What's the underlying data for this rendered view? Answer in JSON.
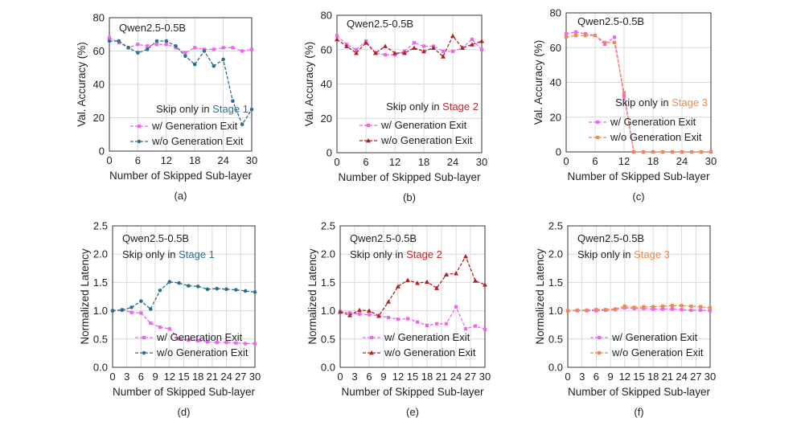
{
  "chart_data": [
    {
      "type": "line",
      "caption": "(a)",
      "title": "Qwen2.5-0.5B",
      "note_prefix": "Skip only in ",
      "note_stage": "Stage 1",
      "note_stage_color": "#2e6f8e",
      "xlabel": "Number of Skipped Sub-layer",
      "ylabel": "Val. Accuracy (%)",
      "xlim": [
        0,
        30
      ],
      "ylim": [
        0,
        80
      ],
      "xticks": [
        "0",
        "6",
        "12",
        "18",
        "24",
        "30"
      ],
      "yticks": [
        "0",
        "20",
        "40",
        "60",
        "80"
      ],
      "series": [
        {
          "name": "w/ Generation Exit",
          "color": "#ee66ee",
          "marker": "square",
          "dash": "4,2",
          "x": [
            0,
            2,
            4,
            6,
            8,
            10,
            12,
            14,
            16,
            18,
            20,
            22,
            24,
            26,
            28,
            30
          ],
          "y": [
            68,
            65,
            62,
            64,
            63,
            64,
            64,
            62,
            59,
            62,
            61,
            61,
            62,
            62,
            60,
            61
          ]
        },
        {
          "name": "w/o Generation Exit",
          "color": "#2e6f8e",
          "marker": "circle",
          "dash": "4,2",
          "x": [
            0,
            2,
            4,
            6,
            8,
            10,
            12,
            14,
            16,
            18,
            20,
            22,
            24,
            26,
            28,
            30
          ],
          "y": [
            66,
            66,
            62,
            59,
            61,
            66,
            66,
            63,
            57,
            52,
            60,
            51,
            55,
            30,
            16,
            25
          ]
        }
      ]
    },
    {
      "type": "line",
      "caption": "(b)",
      "title": "Qwen2.5-0.5B",
      "note_prefix": "Skip only in ",
      "note_stage": "Stage 2",
      "note_stage_color": "#c0282d",
      "xlabel": "Number of Skipped Sub-layer",
      "ylabel": "Val. Accuracy (%)",
      "xlim": [
        0,
        30
      ],
      "ylim": [
        0,
        80
      ],
      "xticks": [
        "0",
        "6",
        "12",
        "18",
        "24",
        "30"
      ],
      "yticks": [
        "0",
        "20",
        "40",
        "60",
        "80"
      ],
      "series": [
        {
          "name": "w/ Generation Exit",
          "color": "#ee66ee",
          "marker": "square",
          "dash": "4,2",
          "x": [
            0,
            2,
            4,
            6,
            8,
            10,
            12,
            14,
            16,
            18,
            20,
            22,
            24,
            26,
            28,
            30
          ],
          "y": [
            68,
            63,
            60,
            65,
            58,
            57,
            57,
            59,
            64,
            62,
            62,
            59,
            59,
            61,
            66,
            60
          ]
        },
        {
          "name": "w/o Generation Exit",
          "color": "#b22222",
          "marker": "triangle",
          "dash": "4,2",
          "x": [
            0,
            2,
            4,
            6,
            8,
            10,
            12,
            14,
            16,
            18,
            20,
            22,
            24,
            26,
            28,
            30
          ],
          "y": [
            66,
            62,
            58,
            64,
            58,
            62,
            58,
            58,
            61,
            59,
            61,
            56,
            68,
            61,
            63,
            65
          ]
        }
      ]
    },
    {
      "type": "line",
      "caption": "(c)",
      "title": "Qwen2.5-0.5B",
      "note_prefix": "Skip only in ",
      "note_stage": "Stage 3",
      "note_stage_color": "#f0894f",
      "xlabel": "Number of Skipped Sub-layer",
      "ylabel": "Val. Accuracy (%)",
      "xlim": [
        0,
        30
      ],
      "ylim": [
        0,
        80
      ],
      "xticks": [
        "0",
        "6",
        "12",
        "18",
        "24",
        "30"
      ],
      "yticks": [
        "0",
        "20",
        "40",
        "60",
        "80"
      ],
      "series": [
        {
          "name": "w/ Generation Exit",
          "color": "#ee66ee",
          "marker": "square",
          "dash": "4,2",
          "x": [
            0,
            2,
            4,
            6,
            8,
            10,
            12,
            14,
            16,
            18,
            20,
            22,
            24,
            26,
            28,
            30
          ],
          "y": [
            68,
            69,
            68,
            67,
            62,
            66,
            32,
            0,
            0,
            0,
            0,
            0,
            0,
            0,
            0,
            0
          ]
        },
        {
          "name": "w/o Generation Exit",
          "color": "#f0894f",
          "marker": "square",
          "dash": "4,2",
          "x": [
            0,
            2,
            4,
            6,
            8,
            10,
            12,
            14,
            16,
            18,
            20,
            22,
            24,
            26,
            28,
            30
          ],
          "y": [
            66,
            67,
            67,
            67,
            63,
            63,
            34,
            0,
            0,
            0,
            0,
            0,
            0,
            0,
            0,
            0
          ]
        }
      ]
    },
    {
      "type": "line",
      "caption": "(d)",
      "title": "Qwen2.5-0.5B",
      "note_prefix": "Skip only in ",
      "note_stage": "Stage 1",
      "note_stage_color": "#2e6f8e",
      "xlabel": "Number of Skipped Sub-layer",
      "ylabel": "Normalized Latency",
      "xlim": [
        0,
        30
      ],
      "ylim": [
        0,
        2.5
      ],
      "xticks": [
        "0",
        "3",
        "6",
        "9",
        "12",
        "15",
        "18",
        "21",
        "24",
        "27",
        "30"
      ],
      "yticks": [
        "0.0",
        "0.5",
        "1.0",
        "1.5",
        "2.0",
        "2.5"
      ],
      "series": [
        {
          "name": "w/ Generation Exit",
          "color": "#ee66ee",
          "marker": "square",
          "dash": "4,2",
          "x": [
            0,
            2,
            4,
            6,
            8,
            10,
            12,
            14,
            16,
            18,
            20,
            22,
            24,
            26,
            28,
            30
          ],
          "y": [
            1.0,
            1.02,
            0.97,
            0.96,
            0.78,
            0.71,
            0.68,
            0.5,
            0.48,
            0.47,
            0.45,
            0.44,
            0.44,
            0.43,
            0.42,
            0.42
          ]
        },
        {
          "name": "w/o Generation Exit",
          "color": "#2e6f8e",
          "marker": "circle",
          "dash": "4,2",
          "x": [
            0,
            2,
            4,
            6,
            8,
            10,
            12,
            14,
            16,
            18,
            20,
            22,
            24,
            26,
            28,
            30
          ],
          "y": [
            1.0,
            1.01,
            1.06,
            1.17,
            1.03,
            1.36,
            1.51,
            1.49,
            1.44,
            1.43,
            1.38,
            1.39,
            1.38,
            1.37,
            1.35,
            1.33
          ]
        }
      ]
    },
    {
      "type": "line",
      "caption": "(e)",
      "title": "Qwen2.5-0.5B",
      "note_prefix": "Skip only in ",
      "note_stage": "Stage 2",
      "note_stage_color": "#c0282d",
      "xlabel": "Number of Skipped Sub-layer",
      "ylabel": "Normalized Latency",
      "xlim": [
        0,
        30
      ],
      "ylim": [
        0,
        2.5
      ],
      "xticks": [
        "0",
        "3",
        "6",
        "9",
        "12",
        "15",
        "18",
        "21",
        "24",
        "27",
        "30"
      ],
      "yticks": [
        "0.0",
        "0.5",
        "1.0",
        "1.5",
        "2.0",
        "2.5"
      ],
      "series": [
        {
          "name": "w/ Generation Exit",
          "color": "#ee66ee",
          "marker": "square",
          "dash": "4,2",
          "x": [
            0,
            2,
            4,
            6,
            8,
            10,
            12,
            14,
            16,
            18,
            20,
            22,
            24,
            26,
            28,
            30
          ],
          "y": [
            0.99,
            0.96,
            0.94,
            0.93,
            0.91,
            0.88,
            0.85,
            0.86,
            0.8,
            0.74,
            0.77,
            0.77,
            1.07,
            0.68,
            0.73,
            0.67
          ]
        },
        {
          "name": "w/o Generation Exit",
          "color": "#b22222",
          "marker": "triangle",
          "dash": "4,2",
          "x": [
            0,
            2,
            4,
            6,
            8,
            10,
            12,
            14,
            16,
            18,
            20,
            22,
            24,
            26,
            28,
            30
          ],
          "y": [
            0.98,
            0.92,
            1.01,
            1.0,
            0.91,
            1.16,
            1.43,
            1.54,
            1.49,
            1.51,
            1.4,
            1.64,
            1.66,
            1.96,
            1.53,
            1.46
          ]
        }
      ]
    },
    {
      "type": "line",
      "caption": "(f)",
      "title": "Qwen2.5-0.5B",
      "note_prefix": "Skip only in ",
      "note_stage": "Stage 3",
      "note_stage_color": "#f0894f",
      "xlabel": "Number of Skipped Sub-layer",
      "ylabel": "Normalized Latency",
      "xlim": [
        0,
        30
      ],
      "ylim": [
        0,
        2.5
      ],
      "xticks": [
        "0",
        "3",
        "6",
        "9",
        "12",
        "15",
        "18",
        "21",
        "24",
        "27",
        "30"
      ],
      "yticks": [
        "0.0",
        "0.5",
        "1.0",
        "1.5",
        "2.0",
        "2.5"
      ],
      "series": [
        {
          "name": "w/ Generation Exit",
          "color": "#ee66ee",
          "marker": "square",
          "dash": "4,2",
          "x": [
            0,
            2,
            4,
            6,
            8,
            10,
            12,
            14,
            16,
            18,
            20,
            22,
            24,
            26,
            28,
            30
          ],
          "y": [
            1.0,
            1.0,
            1.0,
            1.0,
            1.01,
            1.02,
            1.05,
            1.04,
            1.04,
            1.03,
            1.03,
            1.03,
            1.02,
            1.01,
            1.01,
            1.0
          ]
        },
        {
          "name": "w/o Generation Exit",
          "color": "#f0894f",
          "marker": "square",
          "dash": "4,2",
          "x": [
            0,
            2,
            4,
            6,
            8,
            10,
            12,
            14,
            16,
            18,
            20,
            22,
            24,
            26,
            28,
            30
          ],
          "y": [
            1.0,
            1.01,
            1.01,
            1.02,
            1.02,
            1.03,
            1.08,
            1.06,
            1.07,
            1.07,
            1.08,
            1.09,
            1.09,
            1.08,
            1.07,
            1.05
          ]
        }
      ]
    }
  ]
}
